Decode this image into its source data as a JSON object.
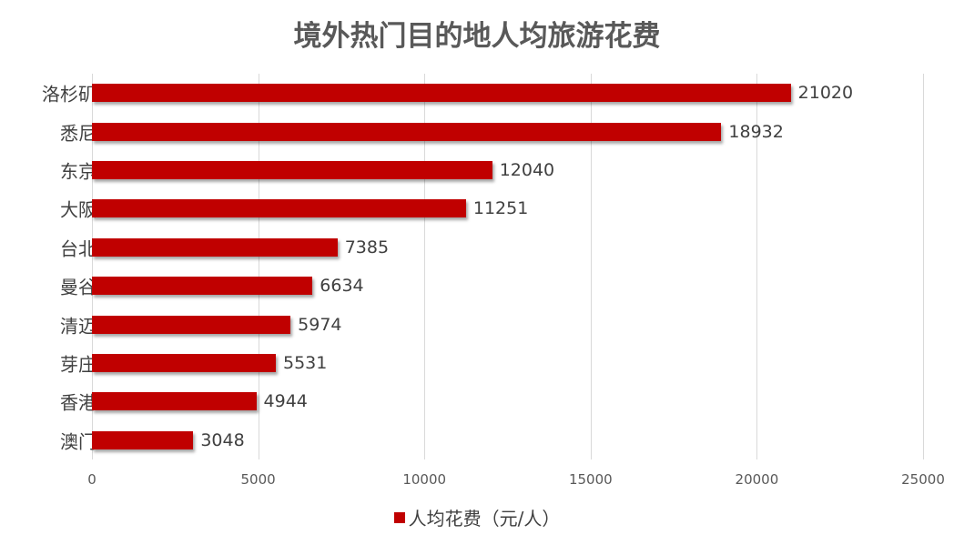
{
  "chart_data": {
    "type": "bar",
    "orientation": "horizontal",
    "title": "境外热门目的地人均旅游花费",
    "xlabel": "",
    "ylabel": "",
    "categories": [
      "洛杉矶",
      "悉尼",
      "东京",
      "大阪",
      "台北",
      "曼谷",
      "清迈",
      "芽庄",
      "香港",
      "澳门"
    ],
    "series": [
      {
        "name": "人均花费（元/人）",
        "color": "#c00000",
        "values": [
          21020,
          18932,
          12040,
          11251,
          7385,
          6634,
          5974,
          5531,
          4944,
          3048
        ]
      }
    ],
    "xlim": [
      0,
      25000
    ],
    "xticks": [
      "0",
      "5000",
      "10000",
      "15000",
      "20000",
      "25000"
    ],
    "grid": true,
    "data_labels": true,
    "legend_position": "bottom"
  },
  "legend": {
    "label": "人均花费（元/人）",
    "color": "#c00000"
  }
}
